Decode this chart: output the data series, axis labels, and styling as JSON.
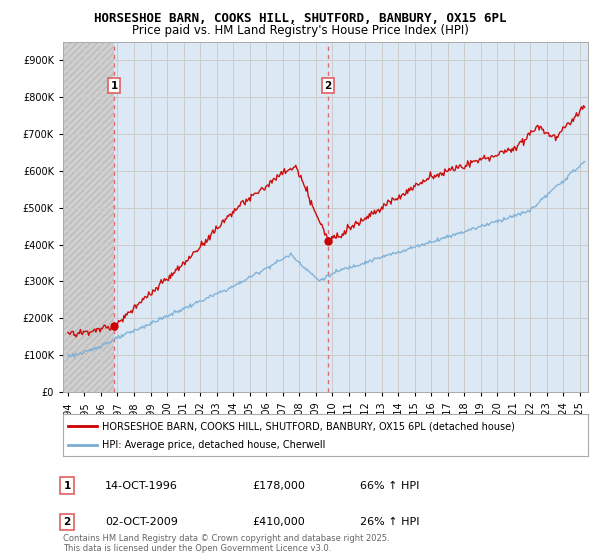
{
  "title": "HORSESHOE BARN, COOKS HILL, SHUTFORD, BANBURY, OX15 6PL",
  "subtitle": "Price paid vs. HM Land Registry's House Price Index (HPI)",
  "yticks": [
    0,
    100000,
    200000,
    300000,
    400000,
    500000,
    600000,
    700000,
    800000,
    900000
  ],
  "ylim": [
    0,
    950000
  ],
  "xlim_start": 1993.7,
  "xlim_end": 2025.5,
  "background_color": "#ffffff",
  "plot_bg_color": "#dce9f5",
  "hatch_bg_color": "#d8d8d8",
  "grid_color": "#cccccc",
  "red_line_color": "#cc0000",
  "blue_line_color": "#7aadd4",
  "dashed_vline_color": "#e06060",
  "sale1_x": 1996.79,
  "sale2_x": 2009.75,
  "sale1_price": 178000,
  "sale2_price": 410000,
  "legend_red_label": "HORSESHOE BARN, COOKS HILL, SHUTFORD, BANBURY, OX15 6PL (detached house)",
  "legend_blue_label": "HPI: Average price, detached house, Cherwell",
  "annotation1_label": "1",
  "annotation2_label": "2",
  "table_row1": [
    "1",
    "14-OCT-1996",
    "£178,000",
    "66% ↑ HPI"
  ],
  "table_row2": [
    "2",
    "02-OCT-2009",
    "£410,000",
    "26% ↑ HPI"
  ],
  "footer": "Contains HM Land Registry data © Crown copyright and database right 2025.\nThis data is licensed under the Open Government Licence v3.0.",
  "title_fontsize": 9,
  "subtitle_fontsize": 8.5,
  "tick_fontsize": 7,
  "legend_fontsize": 7.5,
  "table_fontsize": 8
}
